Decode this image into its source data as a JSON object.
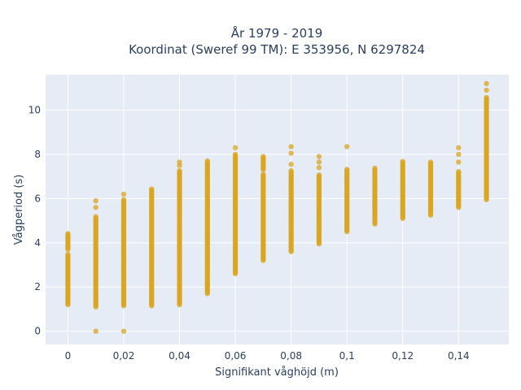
{
  "chart_data": {
    "type": "scatter",
    "title_lines": [
      "År 1979 - 2019",
      "Koordinat (Sweref 99 TM): E 353956, N 6297824"
    ],
    "xlabel": "Signifikant våghöjd (m)",
    "ylabel": "Vågperiod (s)",
    "xlim": [
      -0.008,
      0.158
    ],
    "ylim": [
      -0.6,
      11.6
    ],
    "xticks": [
      0,
      0.02,
      0.04,
      0.06,
      0.08,
      0.1,
      0.12,
      0.14
    ],
    "xtick_labels": [
      "0",
      "0,02",
      "0,04",
      "0,06",
      "0,08",
      "0,1",
      "0,12",
      "0,14"
    ],
    "yticks": [
      0,
      2,
      4,
      6,
      8,
      10
    ],
    "ytick_labels": [
      "0",
      "2",
      "4",
      "6",
      "8",
      "10"
    ],
    "grid": true,
    "marker_color": "#DAA520",
    "plot_background": "#E5ECF6",
    "series": [
      {
        "columns": [
          {
            "x": 0.0,
            "ranges": [
              [
                1.2,
                3.5
              ],
              [
                3.7,
                4.45
              ]
            ],
            "points": []
          },
          {
            "x": 0.01,
            "ranges": [
              [
                1.1,
                5.2
              ]
            ],
            "points": [
              5.6,
              5.9,
              0.0
            ]
          },
          {
            "x": 0.02,
            "ranges": [
              [
                1.15,
                6.0
              ]
            ],
            "points": [
              6.2,
              0.0
            ]
          },
          {
            "x": 0.03,
            "ranges": [
              [
                1.15,
                6.45
              ]
            ],
            "points": []
          },
          {
            "x": 0.04,
            "ranges": [
              [
                1.2,
                7.3
              ]
            ],
            "points": [
              7.5,
              7.65
            ]
          },
          {
            "x": 0.05,
            "ranges": [
              [
                1.7,
                7.7
              ]
            ],
            "points": []
          },
          {
            "x": 0.06,
            "ranges": [
              [
                2.6,
                8.0
              ]
            ],
            "points": [
              8.3
            ]
          },
          {
            "x": 0.07,
            "ranges": [
              [
                3.2,
                7.1
              ],
              [
                7.3,
                7.95
              ]
            ],
            "points": []
          },
          {
            "x": 0.08,
            "ranges": [
              [
                3.6,
                7.3
              ]
            ],
            "points": [
              7.55,
              8.05,
              8.35
            ]
          },
          {
            "x": 0.09,
            "ranges": [
              [
                3.95,
                7.1
              ]
            ],
            "points": [
              7.4,
              7.65,
              7.9
            ]
          },
          {
            "x": 0.1,
            "ranges": [
              [
                4.5,
                7.35
              ]
            ],
            "points": [
              8.35
            ]
          },
          {
            "x": 0.11,
            "ranges": [
              [
                4.85,
                7.4
              ]
            ],
            "points": []
          },
          {
            "x": 0.12,
            "ranges": [
              [
                5.1,
                7.7
              ]
            ],
            "points": []
          },
          {
            "x": 0.13,
            "ranges": [
              [
                5.25,
                7.7
              ]
            ],
            "points": []
          },
          {
            "x": 0.14,
            "ranges": [
              [
                5.6,
                7.25
              ]
            ],
            "points": [
              7.65,
              8.0,
              8.3
            ]
          },
          {
            "x": 0.15,
            "ranges": [
              [
                5.95,
                10.6
              ]
            ],
            "points": [
              10.9,
              11.2
            ]
          }
        ]
      }
    ]
  }
}
